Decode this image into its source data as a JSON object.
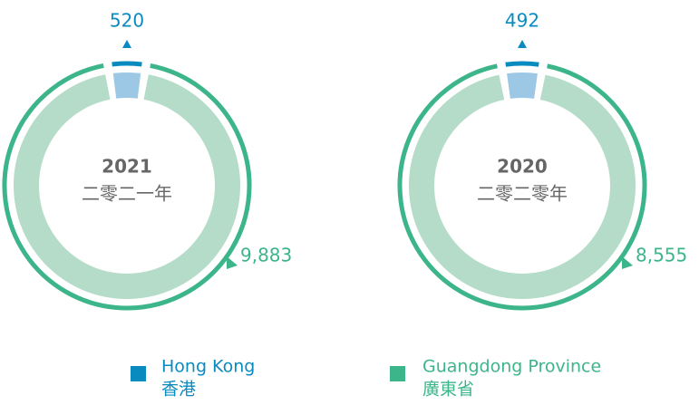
{
  "chart_data": [
    {
      "type": "donut",
      "title": "2021",
      "subtitle": "二零二一年",
      "values": [
        520,
        9883
      ],
      "value_labels": [
        "520",
        "9,883"
      ],
      "colors": [
        "#0a8bc0",
        "#3db58a"
      ],
      "fill_colors": [
        "#9cc8e6",
        "#b5dcc8"
      ]
    },
    {
      "type": "donut",
      "title": "2020",
      "subtitle": "二零二零年",
      "values": [
        492,
        8555
      ],
      "value_labels": [
        "492",
        "8,555"
      ],
      "colors": [
        "#0a8bc0",
        "#3db58a"
      ],
      "fill_colors": [
        "#9cc8e6",
        "#b5dcc8"
      ]
    }
  ],
  "legend": {
    "labels": [
      "Hong Kong",
      "Guangdong Province"
    ],
    "labels_zh": [
      "香港",
      "廣東省"
    ]
  }
}
